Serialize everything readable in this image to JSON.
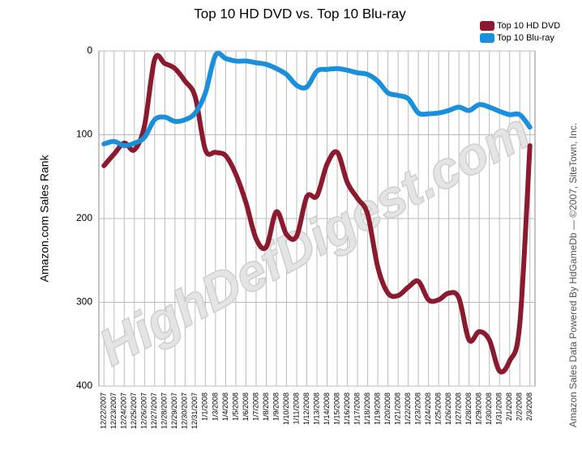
{
  "chart_data": {
    "type": "line",
    "title": "Top 10 HD DVD vs. Top 10 Blu-ray",
    "y_label": "Amazon.com Sales Rank",
    "credit": "Amazon Sales Data Powered By HdGameDb — ©2007, SiteTown, Inc.",
    "watermark": "HighDefDigest.com",
    "categories": [
      "12/22/2007",
      "12/23/2007",
      "12/24/2007",
      "12/25/2007",
      "12/26/2007",
      "12/27/2007",
      "12/28/2007",
      "12/29/2007",
      "12/30/2007",
      "12/31/2007",
      "1/1/2008",
      "1/3/2008",
      "1/4/2008",
      "1/5/2008",
      "1/6/2008",
      "1/7/2008",
      "1/8/2008",
      "1/9/2008",
      "1/10/2008",
      "1/11/2008",
      "1/12/2008",
      "1/13/2008",
      "1/14/2008",
      "1/15/2008",
      "1/16/2008",
      "1/17/2008",
      "1/18/2008",
      "1/19/2008",
      "1/20/2008",
      "1/21/2008",
      "1/22/2008",
      "1/23/2008",
      "1/24/2008",
      "1/25/2008",
      "1/26/2008",
      "1/27/2008",
      "1/28/2008",
      "1/29/2008",
      "1/30/2008",
      "1/31/2008",
      "2/1/2008",
      "2/2/2008",
      "2/3/2008"
    ],
    "series": [
      {
        "name": "Top 10 HD DVD",
        "color": "#8b1a2e",
        "values": [
          137,
          123,
          110,
          118,
          89,
          10,
          15,
          21,
          36,
          55,
          118,
          121,
          125,
          147,
          181,
          224,
          234,
          192,
          219,
          221,
          174,
          173,
          135,
          121,
          157,
          176,
          195,
          258,
          289,
          292,
          282,
          275,
          297,
          297,
          289,
          295,
          345,
          335,
          345,
          382,
          370,
          326,
          113
        ]
      },
      {
        "name": "Top 10 Blu-ray",
        "color": "#1a8fdc",
        "values": [
          111,
          108,
          113,
          110,
          103,
          82,
          79,
          84,
          82,
          74,
          50,
          5,
          9,
          12,
          12,
          14,
          16,
          21,
          28,
          41,
          43,
          24,
          22,
          21,
          23,
          26,
          28,
          36,
          50,
          53,
          57,
          74,
          75,
          74,
          71,
          67,
          71,
          64,
          67,
          72,
          76,
          76,
          91
        ]
      }
    ],
    "ylim": [
      400,
      0
    ],
    "yticks": [
      0,
      100,
      200,
      300,
      400
    ],
    "grid": true,
    "legend": "top-right"
  }
}
